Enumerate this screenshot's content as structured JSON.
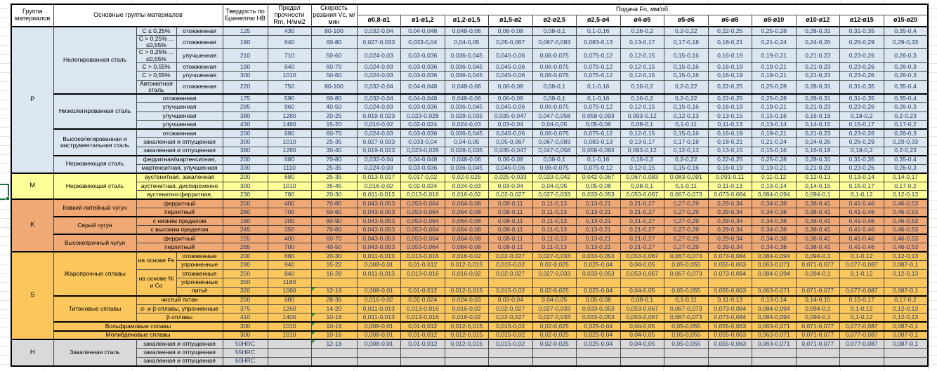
{
  "sheet": {
    "type": "cutting-data-table",
    "colors": {
      "group_P": "#DCE6F1",
      "group_M": "#FFFF99",
      "group_K": "#F0A875",
      "group_S": "#FBC75D",
      "group_H": "#D9D9D9",
      "value_text": "#1F3864",
      "selection_green": "#1E7145",
      "flag_green": "#2F9935"
    }
  },
  "header": {
    "col_group": "Группа материалов",
    "col_main": "Основные группы материалов",
    "col_hb": "Твердость по Бринеллю НВ",
    "col_rm": "Предел прочности Rm, Н/мм2",
    "col_vc": "Скорость резания Vc, м/мин",
    "feed_title": "Подача Fn, мм/об",
    "feed_cols": [
      "ø0,8-ø1",
      "ø1-ø1,2",
      "ø1,2-ø1,5",
      "ø1,5-ø2",
      "ø2-ø2,5",
      "ø2,5-ø4",
      "ø4-ø5",
      "ø5-ø6",
      "ø6-ø8",
      "ø8-ø10",
      "ø10-ø12",
      "ø12-ø15",
      "ø15-ø20"
    ]
  },
  "feed_patterns": {
    "A": [
      "0,032-0,04",
      "0,04-0,048",
      "0,048-0,06",
      "0,06-0,08",
      "0,08-0,1",
      "0,1-0,16",
      "0,16-0,2",
      "0,2-0,22",
      "0,22-0,25",
      "0,25-0,28",
      "0,28-0,31",
      "0,31-0,35",
      "0,35-0,4"
    ],
    "B": [
      "0,027-0,033",
      "0,033-0,04",
      "0,04-0,05",
      "0,05-0,067",
      "0,067-0,083",
      "0,083-0,13",
      "0,13-0,17",
      "0,17-0,18",
      "0,18-0,21",
      "0,21-0,24",
      "0,24-0,26",
      "0,26-0,29",
      "0,29-0,33"
    ],
    "C": [
      "0,024-0,03",
      "0,03-0,036",
      "0,036-0,045",
      "0,045-0,06",
      "0,06-0,075",
      "0,075-0,12",
      "0,12-0,15",
      "0,15-0,16",
      "0,16-0,19",
      "0,19-0,21",
      "0,21-0,23",
      "0,23-0,26",
      "0,26-0,3"
    ],
    "D": [
      "0,019-0,023",
      "0,023-0,028",
      "0,028-0,035",
      "0,035-0,047",
      "0,047-0,058",
      "0,058-0,093",
      "0,093-0,12",
      "0,12-0,13",
      "0,13-0,15",
      "0,15-0,16",
      "0,16-0,18",
      "0,18-0,2",
      "0,2-0,23"
    ],
    "E": [
      "0,016-0,02",
      "0,02-0,024",
      "0,024-0,03",
      "0,03-0,04",
      "0,04-0,05",
      "0,05-0,08",
      "0,08-0,1",
      "0,1-0,11",
      "0,11-0,13",
      "0,13-0,14",
      "0,14-0,15",
      "0,15-0,17",
      "0,17-0,2"
    ],
    "F": [
      "0,013-0,017",
      "0,017-0,02",
      "0,02-0,025",
      "0,025-0,033",
      "0,033-0,042",
      "0,042-0,067",
      "0,067-0,083",
      "0,083-0,091",
      "0,091-0,11",
      "0,11-0,12",
      "0,12-0,13",
      "0,13-0,14",
      "0,14-0,17"
    ],
    "G": [
      "0,011-0,013",
      "0,013-0,016",
      "0,016-0,02",
      "0,02-0,027",
      "0,027-0,033",
      "0,033-0,053",
      "0,053-0,067",
      "0,067-0,073",
      "0,073-0,084",
      "0,084-0,094",
      "0,094-0,1",
      "0,1-0,12",
      "0,12-0,13"
    ],
    "H": [
      "0,008-0,01",
      "0,01-0,012",
      "0,012-0,015",
      "0,015-0,02",
      "0,02-0,025",
      "0,025-0,04",
      "0,04-0,05",
      "0,05-0,055",
      "0,055-0,063",
      "0,063-0,071",
      "0,071-0,077",
      "0,077-0,087",
      "0,087-0,1"
    ],
    "K": [
      "0,043-0,053",
      "0,053-0,064",
      "0,064-0,08",
      "0,08-0,11",
      "0,11-0,13",
      "0,13-0,21",
      "0,21-0,27",
      "0,27-0,29",
      "0,29-0,34",
      "0,34-0,38",
      "0,38-0,41",
      "0,41-0,46",
      "0,46-0,53"
    ],
    "Z": [
      "",
      "",
      "",
      "",
      "",
      "",
      "",
      "",
      "",
      "",
      "",
      "",
      ""
    ]
  },
  "rows": [
    {
      "group": {
        "label": "P",
        "span": 15
      },
      "family": {
        "label": "Нелегированная сталь",
        "span": 6
      },
      "comp": {
        "label": "С ≤ 0,25%"
      },
      "state": {
        "label": "отожженная"
      },
      "hb": "125",
      "rm": "430",
      "vc": "80-100",
      "feed": "A"
    },
    {
      "comp": {
        "label": "С > 0,25% ... ≤0,55%"
      },
      "state": {
        "label": "отожженная"
      },
      "hb": "190",
      "rm": "640",
      "vc": "60-80",
      "feed": "B"
    },
    {
      "comp": {
        "label": "С > 0,25% ... ≤0,55%"
      },
      "state": {
        "label": "улучшенная"
      },
      "hb": "210",
      "rm": "710",
      "vc": "50-60",
      "feed": "C"
    },
    {
      "comp": {
        "label": "С > 0,55%"
      },
      "state": {
        "label": "отожженная"
      },
      "hb": "190",
      "rm": "640",
      "vc": "60-70",
      "feed": "C"
    },
    {
      "comp": {
        "label": "С > 0,55%"
      },
      "state": {
        "label": "улучшенная"
      },
      "hb": "300",
      "rm": "1010",
      "vc": "50-60",
      "feed": "C"
    },
    {
      "comp": {
        "label": "Автоматная сталь"
      },
      "state": {
        "label": "отожженная"
      },
      "hb": "220",
      "rm": "750",
      "vc": "80-100",
      "feed": "A"
    },
    {
      "family": {
        "label": "Низколегированная сталь",
        "span": 4
      },
      "state": {
        "label": "отожженная",
        "colspan": 2
      },
      "hb": "175",
      "rm": "590",
      "vc": "60-80",
      "feed": "A"
    },
    {
      "state": {
        "label": "улучшенная",
        "colspan": 2
      },
      "hb": "285",
      "rm": "960",
      "vc": "40-50",
      "feed": "C"
    },
    {
      "state": {
        "label": "улучшенная",
        "colspan": 2
      },
      "hb": "380",
      "rm": "1280",
      "vc": "20-25",
      "feed": "D"
    },
    {
      "state": {
        "label": "улучшенная",
        "colspan": 2
      },
      "hb": "430",
      "rm": "1480",
      "vc": "15-20",
      "feed": "E"
    },
    {
      "family": {
        "label": "Высоколегированная и инструментальная сталь",
        "span": 3
      },
      "state": {
        "label": "отожженная",
        "colspan": 2
      },
      "hb": "200",
      "rm": "680",
      "vc": "60-70",
      "feed": "C"
    },
    {
      "state": {
        "label": "закаленная и отпущенная",
        "colspan": 2
      },
      "hb": "300",
      "rm": "1010",
      "vc": "25-35",
      "feed": "B"
    },
    {
      "state": {
        "label": "закаленная и отпущенная",
        "colspan": 2
      },
      "hb": "380",
      "rm": "1280",
      "vc": "30-40",
      "feed": "D"
    },
    {
      "family": {
        "label": "Нержавеющая сталь",
        "span": 2
      },
      "state": {
        "label": "ферритная/мартенситная,",
        "colspan": 2
      },
      "hb": "200",
      "rm": "680",
      "vc": "70-80",
      "feed": "A"
    },
    {
      "state": {
        "label": "мартенситная, улучшенная",
        "colspan": 2
      },
      "hb": "330",
      "rm": "1110",
      "vc": "25-35",
      "feed": "C"
    },
    {
      "group": {
        "label": "M",
        "span": 3
      },
      "family": {
        "label": "Нержавеющая сталь",
        "span": 3
      },
      "state": {
        "label": "аустенитная, закаленная",
        "colspan": 2
      },
      "hb": "200",
      "rm": "680",
      "vc": "25-35",
      "feed": "F"
    },
    {
      "state": {
        "label": "аустенитная, дисперсионно",
        "colspan": 2
      },
      "hb": "300",
      "rm": "1010",
      "vc": "35-45",
      "feed": "E"
    },
    {
      "state": {
        "label": "аустенитно-ферритная,",
        "colspan": 2
      },
      "hb": "230",
      "rm": "780",
      "vc": "20-30",
      "feed": "G"
    },
    {
      "group": {
        "label": "K",
        "span": 6
      },
      "family": {
        "label": "Ковкий литейный чугун",
        "span": 2
      },
      "state": {
        "label": "ферритный",
        "colspan": 2
      },
      "hb": "200",
      "rm": "400",
      "vc": "70-80",
      "feed": "K"
    },
    {
      "state": {
        "label": "перлитный",
        "colspan": 2
      },
      "hb": "260",
      "rm": "700",
      "vc": "50-60",
      "feed": "K"
    },
    {
      "family": {
        "label": "Серый чугун",
        "span": 2
      },
      "state": {
        "label": "с низким пределом",
        "colspan": 2
      },
      "hb": "180",
      "rm": "200",
      "vc": "80-90",
      "feed": "K"
    },
    {
      "state": {
        "label": "с высоким пределом",
        "colspan": 2
      },
      "hb": "245",
      "rm": "350",
      "vc": "70-80",
      "feed": "K"
    },
    {
      "family": {
        "label": "Высокопрочный чугун",
        "span": 2
      },
      "state": {
        "label": "ферритный",
        "colspan": 2
      },
      "hb": "155",
      "rm": "400",
      "vc": "60-70",
      "feed": "K"
    },
    {
      "state": {
        "label": "перлитный",
        "colspan": 2
      },
      "hb": "265",
      "rm": "700",
      "vc": "40-50",
      "feed": "K"
    },
    {
      "group": {
        "label": "S",
        "span": 10
      },
      "family": {
        "label": "Жаропрочные сплавы",
        "span": 5
      },
      "comp": {
        "label": "на основе Fe",
        "span": 2
      },
      "state": {
        "label": "отожженные"
      },
      "hb": "200",
      "rm": "680",
      "vc": "20-30",
      "feed": "G"
    },
    {
      "state": {
        "label": "упрочненные"
      },
      "hb": "280",
      "rm": "940",
      "vc": "15-22",
      "feed": "H"
    },
    {
      "comp": {
        "label": "на основе Ni и Со",
        "span": 3
      },
      "state": {
        "label": "отожженные"
      },
      "hb": "250",
      "rm": "840",
      "vc": "16-28",
      "feed": "G"
    },
    {
      "state": {
        "label": "упрочненные"
      },
      "hb": "350",
      "rm": "1180",
      "vc": "",
      "feed": "Z"
    },
    {
      "state": {
        "label": "литьё"
      },
      "hb": "320",
      "rm": "1080",
      "vc": "12-16",
      "vc_flag": true,
      "feed": "H"
    },
    {
      "family": {
        "label": "Титановые сплавы",
        "span": 3
      },
      "state": {
        "label": "чистый титан",
        "colspan": 2
      },
      "hb": "200",
      "rm": "680",
      "vc": "28-36",
      "feed": "E"
    },
    {
      "state": {
        "label": "α- и β-сплавы, упрочненные",
        "colspan": 2
      },
      "hb": "375",
      "rm": "1260",
      "vc": "14-20",
      "feed": "G"
    },
    {
      "state": {
        "label": "β-сплавы",
        "colspan": 2
      },
      "hb": "410",
      "rm": "1400",
      "vc": "10-16",
      "vc_flag": true,
      "feed": "G"
    },
    {
      "family": {
        "label": "Вольфрамовые сплавы",
        "span": 1,
        "colspan": 3
      },
      "hb": "300",
      "rm": "1010",
      "vc": "10-16",
      "vc_flag": true,
      "feed": "H"
    },
    {
      "family": {
        "label": "Молибденовые сплавы",
        "span": 1,
        "colspan": 3
      },
      "hb": "300",
      "rm": "1010",
      "vc": "10-16",
      "vc_flag": true,
      "feed": "H"
    },
    {
      "group": {
        "label": "H",
        "span": 3
      },
      "family": {
        "label": "Закаленная сталь",
        "span": 3
      },
      "state": {
        "label": "закаленная и отпущенная",
        "colspan": 2
      },
      "hb": "50HRC",
      "rm": "",
      "vc": "12-18",
      "vc_flag": true,
      "feed": "H"
    },
    {
      "state": {
        "label": "закаленная и отпущенная",
        "colspan": 2
      },
      "hb": "55HRC",
      "rm": "",
      "vc": "",
      "feed": "Z"
    },
    {
      "state": {
        "label": "закаленная и отпущенная",
        "colspan": 2
      },
      "hb": "60HRC",
      "rm": "",
      "vc": "",
      "feed": "Z"
    }
  ]
}
